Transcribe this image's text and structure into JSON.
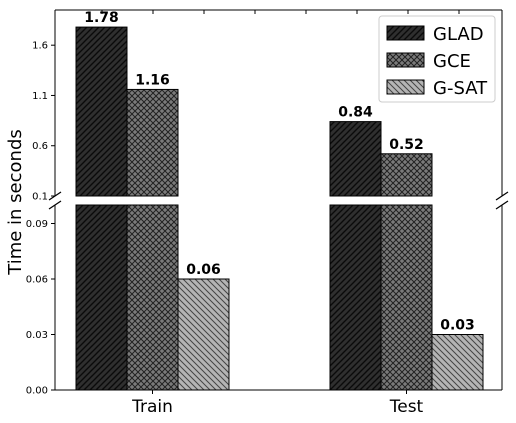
{
  "chart_data": {
    "type": "bar",
    "broken_axis": true,
    "categories": [
      "Train",
      "Test"
    ],
    "series": [
      {
        "name": "GLAD",
        "values": [
          1.78,
          0.84
        ],
        "labels": [
          "1.78",
          "0.84"
        ],
        "color": "#2f2f2f",
        "pattern": "diagonal"
      },
      {
        "name": "GCE",
        "values": [
          1.16,
          0.52
        ],
        "labels": [
          "1.16",
          "0.52"
        ],
        "color": "#777777",
        "pattern": "crosshatch"
      },
      {
        "name": "G-SAT",
        "values": [
          0.06,
          0.03
        ],
        "labels": [
          "0.06",
          "0.03"
        ],
        "color": "#b4b4b4",
        "pattern": "backdiagonal"
      }
    ],
    "ylabel": "Time in seconds",
    "upper_ylim": [
      0.1,
      1.95
    ],
    "lower_ylim": [
      0,
      0.1
    ],
    "upper_yticks": [
      "0.1",
      "0.6",
      "1.1",
      "1.6"
    ],
    "lower_yticks": [
      "0.00",
      "0.03",
      "0.06",
      "0.09"
    ],
    "legend_position": "top-right",
    "grid": false
  }
}
